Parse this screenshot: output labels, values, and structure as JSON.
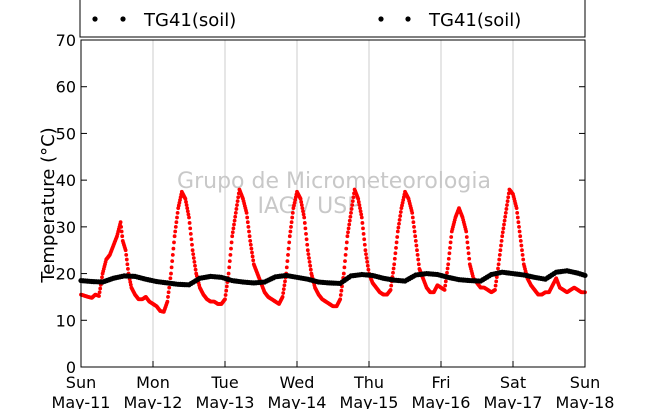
{
  "chart_data": {
    "type": "scatter",
    "ylabel": "Temperature (°C)",
    "xlabel": "",
    "ylim": [
      0,
      70
    ],
    "yticks": [
      0,
      10,
      20,
      30,
      40,
      50,
      60,
      70
    ],
    "xlim": [
      0,
      7
    ],
    "xticks": [
      {
        "x": 0,
        "day": "Sun",
        "date": "May-11"
      },
      {
        "x": 1,
        "day": "Mon",
        "date": "May-12"
      },
      {
        "x": 2,
        "day": "Tue",
        "date": "May-13"
      },
      {
        "x": 3,
        "day": "Wed",
        "date": "May-14"
      },
      {
        "x": 4,
        "day": "Thu",
        "date": "May-15"
      },
      {
        "x": 5,
        "day": "Fri",
        "date": "May-16"
      },
      {
        "x": 6,
        "day": "Sat",
        "date": "May-17"
      },
      {
        "x": 7,
        "day": "Sun",
        "date": "May-18"
      }
    ],
    "grid": "vertical",
    "watermark": [
      "Grupo de Micrometeorologia",
      "IAG / USP"
    ],
    "legend": [
      {
        "label": "TG41(soil)",
        "color": "#000000"
      },
      {
        "label": "TG41(soil)",
        "color": "#000000"
      }
    ],
    "series": [
      {
        "color": "#ff0000",
        "x": [
          0,
          0.1,
          0.15,
          0.2,
          0.25,
          0.3,
          0.35,
          0.4,
          0.45,
          0.5,
          0.55,
          0.58,
          0.62,
          0.66,
          0.7,
          0.75,
          0.8,
          0.85,
          0.9,
          0.95,
          1.0,
          1.05,
          1.1,
          1.15,
          1.2,
          1.25,
          1.3,
          1.35,
          1.4,
          1.45,
          1.5,
          1.55,
          1.6,
          1.65,
          1.7,
          1.75,
          1.8,
          1.85,
          1.9,
          1.95,
          2.0,
          2.05,
          2.1,
          2.15,
          2.2,
          2.25,
          2.3,
          2.35,
          2.4,
          2.45,
          2.5,
          2.55,
          2.6,
          2.65,
          2.7,
          2.75,
          2.8,
          2.85,
          2.9,
          2.95,
          3.0,
          3.05,
          3.1,
          3.15,
          3.2,
          3.25,
          3.3,
          3.35,
          3.4,
          3.45,
          3.5,
          3.55,
          3.6,
          3.65,
          3.7,
          3.75,
          3.8,
          3.85,
          3.9,
          3.95,
          4.0,
          4.05,
          4.1,
          4.15,
          4.2,
          4.25,
          4.3,
          4.35,
          4.4,
          4.45,
          4.5,
          4.55,
          4.6,
          4.65,
          4.7,
          4.75,
          4.8,
          4.85,
          4.9,
          4.95,
          5.0,
          5.05,
          5.1,
          5.15,
          5.2,
          5.25,
          5.3,
          5.35,
          5.4,
          5.45,
          5.5,
          5.55,
          5.6,
          5.65,
          5.7,
          5.75,
          5.8,
          5.85,
          5.9,
          5.95,
          6.0,
          6.05,
          6.1,
          6.15,
          6.2,
          6.25,
          6.3,
          6.35,
          6.4,
          6.45,
          6.5,
          6.55,
          6.6,
          6.65,
          6.7,
          6.75,
          6.8,
          6.85,
          6.9,
          6.95,
          7.0
        ],
        "y": [
          15.5,
          15,
          14.8,
          15.5,
          15.2,
          20,
          23,
          24,
          26,
          28,
          31,
          27,
          25,
          20,
          17,
          15.5,
          14.5,
          14.5,
          15,
          14,
          13.5,
          13,
          12,
          11.8,
          14,
          20,
          28,
          34,
          37.5,
          36,
          32,
          25,
          20,
          17,
          15.5,
          14.5,
          14,
          14,
          13.5,
          13.5,
          14.5,
          20,
          28,
          33,
          38,
          36,
          33,
          27,
          22,
          20,
          18,
          16,
          15,
          14.5,
          14,
          13.5,
          15,
          20,
          28,
          34,
          37.5,
          36,
          32,
          25,
          20,
          17,
          15.5,
          14.5,
          14,
          13.5,
          13,
          13,
          14.5,
          20,
          28,
          33,
          38,
          36,
          32,
          25,
          20,
          18,
          17,
          16,
          15.5,
          15.5,
          16.5,
          22,
          29,
          34,
          37.5,
          36,
          33,
          27,
          21,
          19,
          17,
          16,
          16,
          17.5,
          17,
          16.5,
          22,
          29,
          32,
          34,
          32,
          29,
          22,
          19,
          18,
          17,
          17,
          16.5,
          16,
          16.5,
          22,
          28,
          33,
          38,
          37,
          34,
          28,
          22,
          19,
          17.5,
          16.5,
          15.5,
          15.5,
          16,
          16,
          17.5,
          19,
          17,
          16.5,
          16,
          16.5,
          17,
          16.5,
          16,
          16
        ]
      },
      {
        "color": "#000000",
        "x": [
          0,
          0.15,
          0.3,
          0.45,
          0.6,
          0.75,
          0.9,
          1.05,
          1.2,
          1.35,
          1.5,
          1.65,
          1.8,
          1.95,
          2.1,
          2.25,
          2.4,
          2.55,
          2.7,
          2.85,
          3.0,
          3.15,
          3.3,
          3.45,
          3.6,
          3.75,
          3.9,
          4.05,
          4.2,
          4.35,
          4.5,
          4.65,
          4.8,
          4.95,
          5.1,
          5.25,
          5.4,
          5.55,
          5.7,
          5.85,
          6.0,
          6.15,
          6.3,
          6.45,
          6.6,
          6.75,
          6.9,
          7.0
        ],
        "y": [
          18.5,
          18.3,
          18.2,
          19,
          19.5,
          19.4,
          18.8,
          18.3,
          18,
          17.7,
          17.6,
          19,
          19.4,
          19.2,
          18.5,
          18.2,
          18,
          18.2,
          19.3,
          19.6,
          19.2,
          18.8,
          18.2,
          18,
          17.9,
          19.5,
          19.8,
          19.6,
          19,
          18.6,
          18.4,
          19.7,
          20,
          19.8,
          19.2,
          18.7,
          18.5,
          18.4,
          19.8,
          20.3,
          20,
          19.7,
          19.2,
          18.8,
          20.3,
          20.6,
          20.1,
          19.6
        ]
      }
    ]
  }
}
